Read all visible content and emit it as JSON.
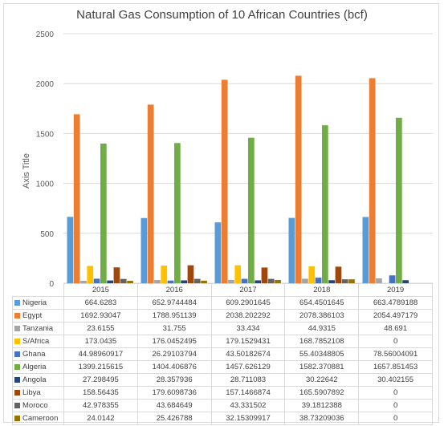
{
  "chart_data": {
    "type": "bar",
    "title": "Natural Gas Consumption of 10 African Countries (bcf)",
    "xlabel": "",
    "ylabel": "Axis Title",
    "ylim": [
      0,
      2500
    ],
    "yticks": [
      0,
      500,
      1000,
      1500,
      2000,
      2500
    ],
    "grid": true,
    "legend": "data-table",
    "categories": [
      "2015",
      "2016",
      "2017",
      "2018",
      "2019"
    ],
    "series": [
      {
        "name": "Nigeria",
        "color": "#5b9bd5",
        "values": [
          664.6283,
          652.9744484,
          609.2901645,
          654.4501645,
          663.4789188
        ],
        "labels": [
          "664.6283",
          "652.9744484",
          "609.2901645",
          "654.4501645",
          "663.4789188"
        ]
      },
      {
        "name": "Egypt",
        "color": "#ed7d31",
        "values": [
          1692.93047,
          1788.951139,
          2038.202292,
          2078.386103,
          2054.497179
        ],
        "labels": [
          "1692.93047",
          "1788.951139",
          "2038.202292",
          "2078.386103",
          "2054.497179"
        ]
      },
      {
        "name": "Tanzania",
        "color": "#a5a5a5",
        "values": [
          23.6155,
          31.755,
          33.434,
          44.9315,
          48.691
        ],
        "labels": [
          "23.6155",
          "31.755",
          "33.434",
          "44.9315",
          "48.691"
        ]
      },
      {
        "name": "S/Africa",
        "color": "#ffc000",
        "values": [
          173.0435,
          176.0452495,
          179.1529431,
          168.7852108,
          0
        ],
        "labels": [
          "173.0435",
          "176.0452495",
          "179.1529431",
          "168.7852108",
          "0"
        ]
      },
      {
        "name": "Ghana",
        "color": "#4472c4",
        "values": [
          44.98960917,
          26.29103794,
          43.50182674,
          55.40348805,
          78.56004091
        ],
        "labels": [
          "44.98960917",
          "26.29103794",
          "43.50182674",
          "55.40348805",
          "78.56004091"
        ]
      },
      {
        "name": "Algeria",
        "color": "#70ad47",
        "values": [
          1399.215615,
          1404.406876,
          1457.626129,
          1582.370881,
          1657.851453
        ],
        "labels": [
          "1399.215615",
          "1404.406876",
          "1457.626129",
          "1582.370881",
          "1657.851453"
        ]
      },
      {
        "name": "Angola",
        "color": "#264478",
        "values": [
          27.298495,
          28.357936,
          28.711083,
          30.22642,
          30.402155
        ],
        "labels": [
          "27.298495",
          "28.357936",
          "28.711083",
          "30.22642",
          "30.402155"
        ]
      },
      {
        "name": "Libya",
        "color": "#9e480e",
        "values": [
          158.56435,
          179.6098736,
          157.1466874,
          165.5907892,
          0
        ],
        "labels": [
          "158.56435",
          "179.6098736",
          "157.1466874",
          "165.5907892",
          "0"
        ]
      },
      {
        "name": "Moroco",
        "color": "#636363",
        "values": [
          42.978355,
          43.684649,
          43.331502,
          39.1812388,
          0
        ],
        "labels": [
          "42.978355",
          "43.684649",
          "43.331502",
          "39.1812388",
          "0"
        ]
      },
      {
        "name": "Cameroon",
        "color": "#997300",
        "values": [
          24.0142,
          25.426788,
          32.15309917,
          38.73209036,
          0
        ],
        "labels": [
          "24.0142",
          "25.426788",
          "32.15309917",
          "38.73209036",
          "0"
        ]
      }
    ]
  }
}
